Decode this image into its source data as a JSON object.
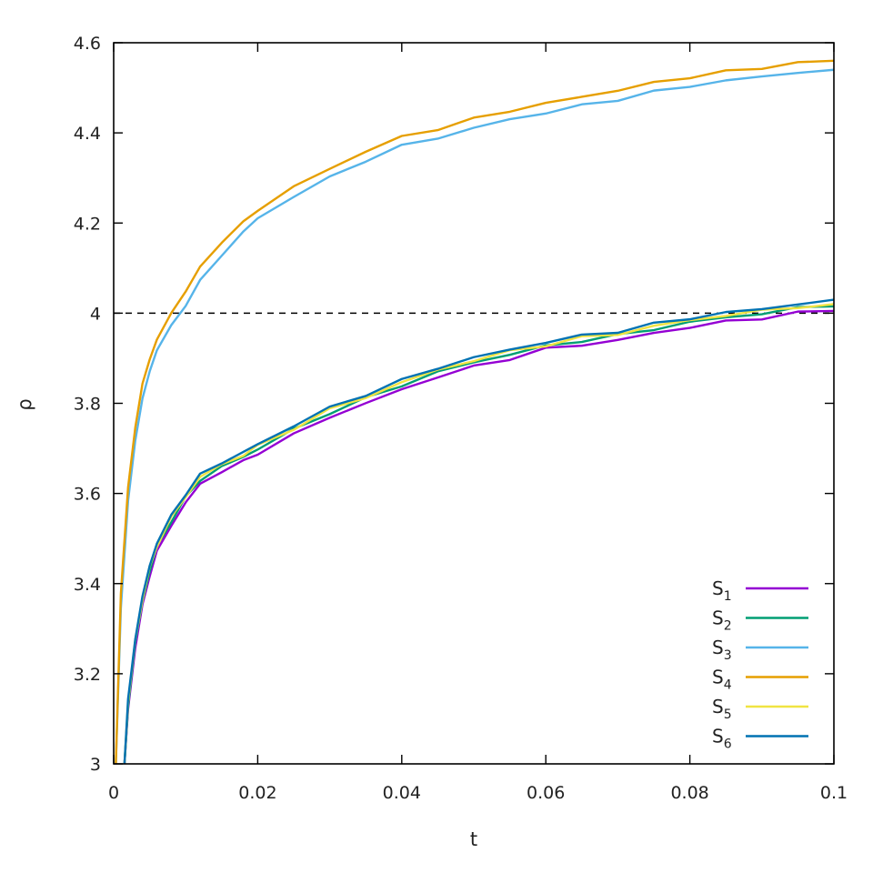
{
  "chart_data": {
    "type": "line",
    "title": "",
    "xlabel": "t",
    "ylabel": "ρ",
    "xlim": [
      0,
      0.1
    ],
    "ylim": [
      3,
      4.6
    ],
    "xticks": [
      "0",
      "0.02",
      "0.04",
      "0.06",
      "0.08",
      "0.1"
    ],
    "yticks": [
      "3",
      "3.2",
      "3.4",
      "3.6",
      "3.8",
      "4",
      "4.2",
      "4.4",
      "4.6"
    ],
    "grid": false,
    "legend_position": "bottom-right",
    "reference_line": {
      "y": 4,
      "style": "dashed",
      "color": "#000000"
    },
    "series": [
      {
        "name": "S",
        "sub": "1",
        "color": "#9400d3",
        "x": [
          0.0015,
          0.002,
          0.003,
          0.004,
          0.005,
          0.006,
          0.008,
          0.01,
          0.012,
          0.015,
          0.018,
          0.02,
          0.025,
          0.03,
          0.035,
          0.04,
          0.045,
          0.05,
          0.055,
          0.06,
          0.065,
          0.07,
          0.075,
          0.08,
          0.085,
          0.09,
          0.095,
          0.1
        ],
        "y": [
          3.0,
          3.12,
          3.26,
          3.35,
          3.42,
          3.47,
          3.53,
          3.58,
          3.62,
          3.65,
          3.67,
          3.69,
          3.73,
          3.77,
          3.8,
          3.83,
          3.86,
          3.88,
          3.9,
          3.92,
          3.93,
          3.94,
          3.955,
          3.97,
          3.98,
          3.99,
          4.0,
          4.005
        ]
      },
      {
        "name": "S",
        "sub": "2",
        "color": "#009e73",
        "x": [
          0.0015,
          0.002,
          0.003,
          0.004,
          0.005,
          0.006,
          0.008,
          0.01,
          0.012,
          0.015,
          0.018,
          0.02,
          0.025,
          0.03,
          0.035,
          0.04,
          0.045,
          0.05,
          0.055,
          0.06,
          0.065,
          0.07,
          0.075,
          0.08,
          0.085,
          0.09,
          0.095,
          0.1
        ],
        "y": [
          3.0,
          3.13,
          3.27,
          3.36,
          3.43,
          3.48,
          3.54,
          3.59,
          3.63,
          3.66,
          3.68,
          3.7,
          3.74,
          3.78,
          3.81,
          3.84,
          3.87,
          3.89,
          3.91,
          3.925,
          3.94,
          3.95,
          3.965,
          3.98,
          3.99,
          4.0,
          4.01,
          4.015
        ]
      },
      {
        "name": "S",
        "sub": "3",
        "color": "#56b4e9",
        "x": [
          0.0003,
          0.001,
          0.002,
          0.003,
          0.004,
          0.005,
          0.006,
          0.008,
          0.01,
          0.012,
          0.015,
          0.018,
          0.02,
          0.025,
          0.03,
          0.035,
          0.04,
          0.045,
          0.05,
          0.055,
          0.06,
          0.065,
          0.07,
          0.075,
          0.08,
          0.085,
          0.09,
          0.095,
          0.1
        ],
        "y": [
          3.0,
          3.35,
          3.58,
          3.72,
          3.81,
          3.87,
          3.92,
          3.97,
          4.02,
          4.07,
          4.13,
          4.18,
          4.21,
          4.26,
          4.3,
          4.34,
          4.37,
          4.39,
          4.41,
          4.43,
          4.445,
          4.46,
          4.475,
          4.49,
          4.505,
          4.515,
          4.525,
          4.535,
          4.54
        ]
      },
      {
        "name": "S",
        "sub": "4",
        "color": "#e69f00",
        "x": [
          0.0003,
          0.001,
          0.002,
          0.003,
          0.004,
          0.005,
          0.006,
          0.008,
          0.01,
          0.012,
          0.015,
          0.018,
          0.02,
          0.025,
          0.03,
          0.035,
          0.04,
          0.045,
          0.05,
          0.055,
          0.06,
          0.065,
          0.07,
          0.075,
          0.08,
          0.085,
          0.09,
          0.095,
          0.1
        ],
        "y": [
          3.0,
          3.38,
          3.61,
          3.75,
          3.84,
          3.9,
          3.94,
          4.0,
          4.05,
          4.1,
          4.16,
          4.2,
          4.23,
          4.28,
          4.32,
          4.36,
          4.39,
          4.41,
          4.43,
          4.45,
          4.465,
          4.48,
          4.495,
          4.51,
          4.525,
          4.535,
          4.545,
          4.555,
          4.56
        ]
      },
      {
        "name": "S",
        "sub": "5",
        "color": "#f0e442",
        "x": [
          0.0015,
          0.002,
          0.003,
          0.004,
          0.005,
          0.006,
          0.008,
          0.01,
          0.012,
          0.015,
          0.018,
          0.02,
          0.025,
          0.03,
          0.035,
          0.04,
          0.045,
          0.05,
          0.055,
          0.06,
          0.065,
          0.07,
          0.075,
          0.08,
          0.085,
          0.09,
          0.095,
          0.1
        ],
        "y": [
          3.0,
          3.135,
          3.275,
          3.365,
          3.435,
          3.485,
          3.545,
          3.595,
          3.635,
          3.665,
          3.685,
          3.705,
          3.745,
          3.785,
          3.815,
          3.845,
          3.875,
          3.895,
          3.915,
          3.93,
          3.945,
          3.955,
          3.97,
          3.985,
          3.995,
          4.005,
          4.015,
          4.02
        ]
      },
      {
        "name": "S",
        "sub": "6",
        "color": "#0072b2",
        "x": [
          0.0015,
          0.002,
          0.003,
          0.004,
          0.005,
          0.006,
          0.008,
          0.01,
          0.012,
          0.015,
          0.018,
          0.02,
          0.025,
          0.03,
          0.035,
          0.04,
          0.045,
          0.05,
          0.055,
          0.06,
          0.065,
          0.07,
          0.075,
          0.08,
          0.085,
          0.09,
          0.095,
          0.1
        ],
        "y": [
          3.0,
          3.14,
          3.28,
          3.37,
          3.44,
          3.49,
          3.55,
          3.6,
          3.64,
          3.67,
          3.69,
          3.71,
          3.75,
          3.79,
          3.82,
          3.85,
          3.88,
          3.9,
          3.92,
          3.935,
          3.95,
          3.96,
          3.975,
          3.99,
          4.0,
          4.01,
          4.02,
          4.03
        ]
      }
    ]
  }
}
